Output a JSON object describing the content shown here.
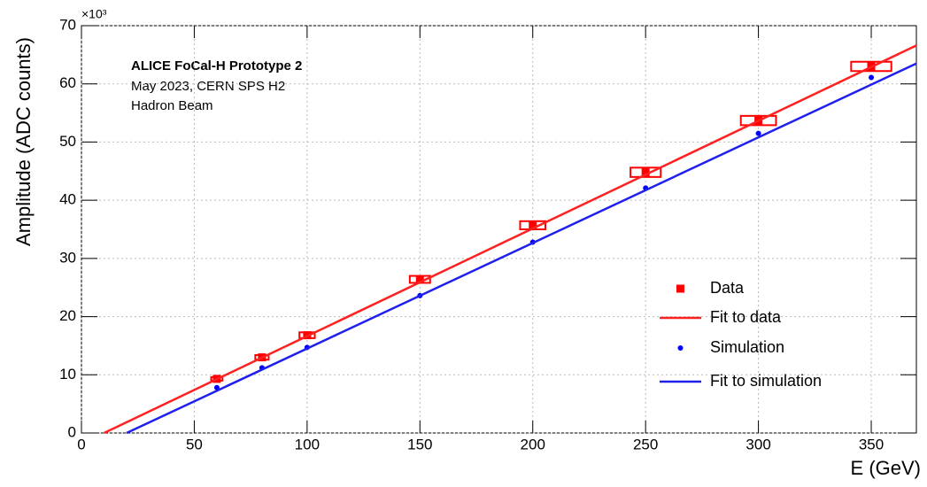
{
  "chart_data": {
    "type": "scatter",
    "x_label": "E (GeV)",
    "y_label": "Amplitude (ADC counts)",
    "y_multiplier": "×10³",
    "annotations": [
      "ALICE FoCal-H Prototype 2",
      "May 2023, CERN SPS H2",
      "Hadron Beam"
    ],
    "xlim": [
      0,
      370
    ],
    "ylim": [
      0,
      70
    ],
    "xticks": [
      0,
      50,
      100,
      150,
      200,
      250,
      300,
      350
    ],
    "yticks": [
      0,
      10,
      20,
      30,
      40,
      50,
      60,
      70
    ],
    "grid": true,
    "legend": "lower right",
    "series": [
      {
        "name": "Data",
        "type": "scatter",
        "marker": "square",
        "color": "#ff0000",
        "x": [
          60,
          80,
          100,
          150,
          200,
          250,
          300,
          350
        ],
        "values": [
          9.3,
          13.0,
          16.8,
          26.4,
          35.7,
          44.8,
          53.7,
          63.0
        ],
        "errors": [
          0.3,
          0.4,
          0.5,
          0.6,
          0.7,
          0.8,
          0.8,
          0.8
        ]
      },
      {
        "name": "Fit to data",
        "type": "line",
        "color": "#ff2020",
        "x": [
          10,
          370
        ],
        "values": [
          0,
          66.6
        ]
      },
      {
        "name": "Simulation",
        "type": "scatter",
        "marker": "circle",
        "color": "#0000ff",
        "x": [
          60,
          80,
          100,
          150,
          200,
          250,
          300,
          350
        ],
        "values": [
          7.8,
          11.2,
          14.7,
          23.6,
          32.8,
          42.1,
          51.5,
          61.1
        ]
      },
      {
        "name": "Fit to simulation",
        "type": "line",
        "color": "#2020ee",
        "x": [
          20,
          370
        ],
        "values": [
          0,
          63.5
        ]
      }
    ]
  }
}
